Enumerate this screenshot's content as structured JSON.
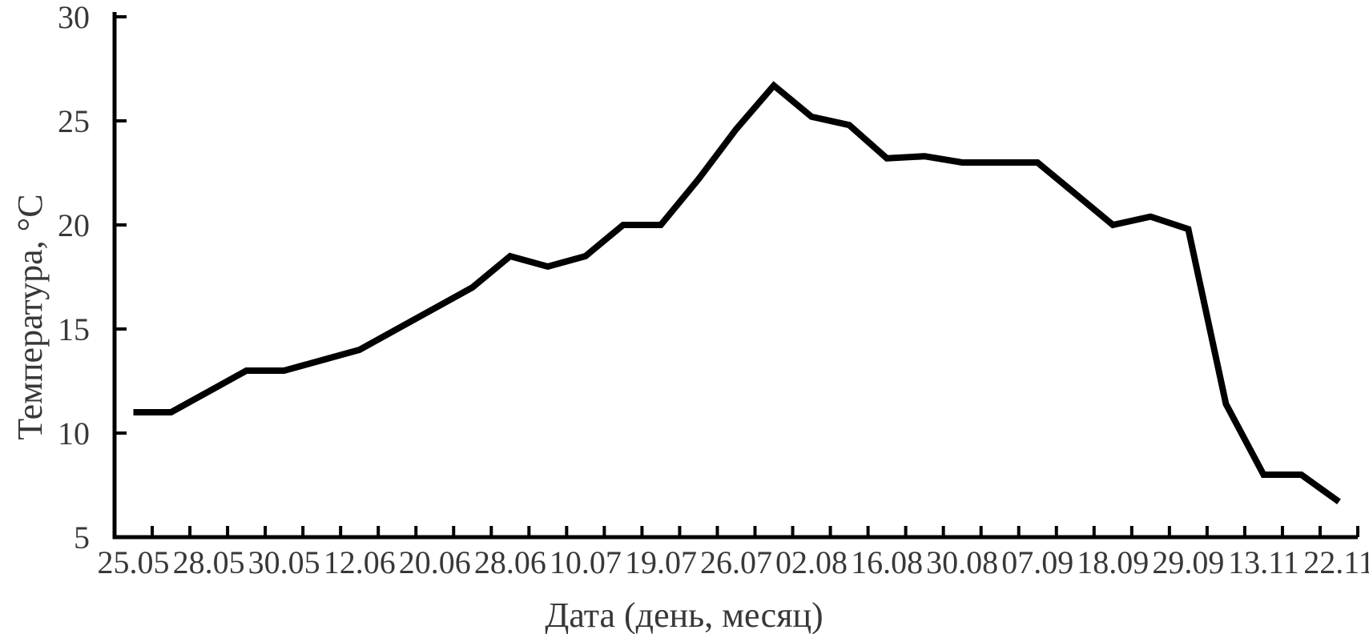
{
  "page": {
    "background": "#ffffff"
  },
  "chart_data": {
    "type": "line",
    "title": "",
    "xlabel": "Дата (день, месяц)",
    "ylabel": "Температура, °С",
    "x_tick_labels": [
      "25.05",
      "28.05",
      "30.05",
      "12.06",
      "20.06",
      "28.06",
      "10.07",
      "19.07",
      "26.07",
      "02.08",
      "16.08",
      "30.08",
      "07.09",
      "18.09",
      "29.09",
      "13.11",
      "22.11"
    ],
    "x_label_every_n_points": 2,
    "y_ticks": [
      5,
      10,
      15,
      20,
      25,
      30
    ],
    "ylim": [
      5,
      30
    ],
    "grid": "off",
    "legend": "none",
    "series": [
      {
        "name": "Температура",
        "values": [
          11,
          11,
          12,
          13,
          13,
          13.5,
          14,
          15,
          16,
          17,
          18.5,
          18,
          18.5,
          20,
          20,
          22.2,
          24.6,
          26.7,
          25.2,
          24.8,
          23.2,
          23.3,
          23,
          23,
          23,
          21.5,
          20,
          20.4,
          19.8,
          11.4,
          8,
          8,
          6.7
        ]
      }
    ],
    "colors": {
      "line": "#000000",
      "axis": "#000000",
      "text": "#383838"
    }
  }
}
